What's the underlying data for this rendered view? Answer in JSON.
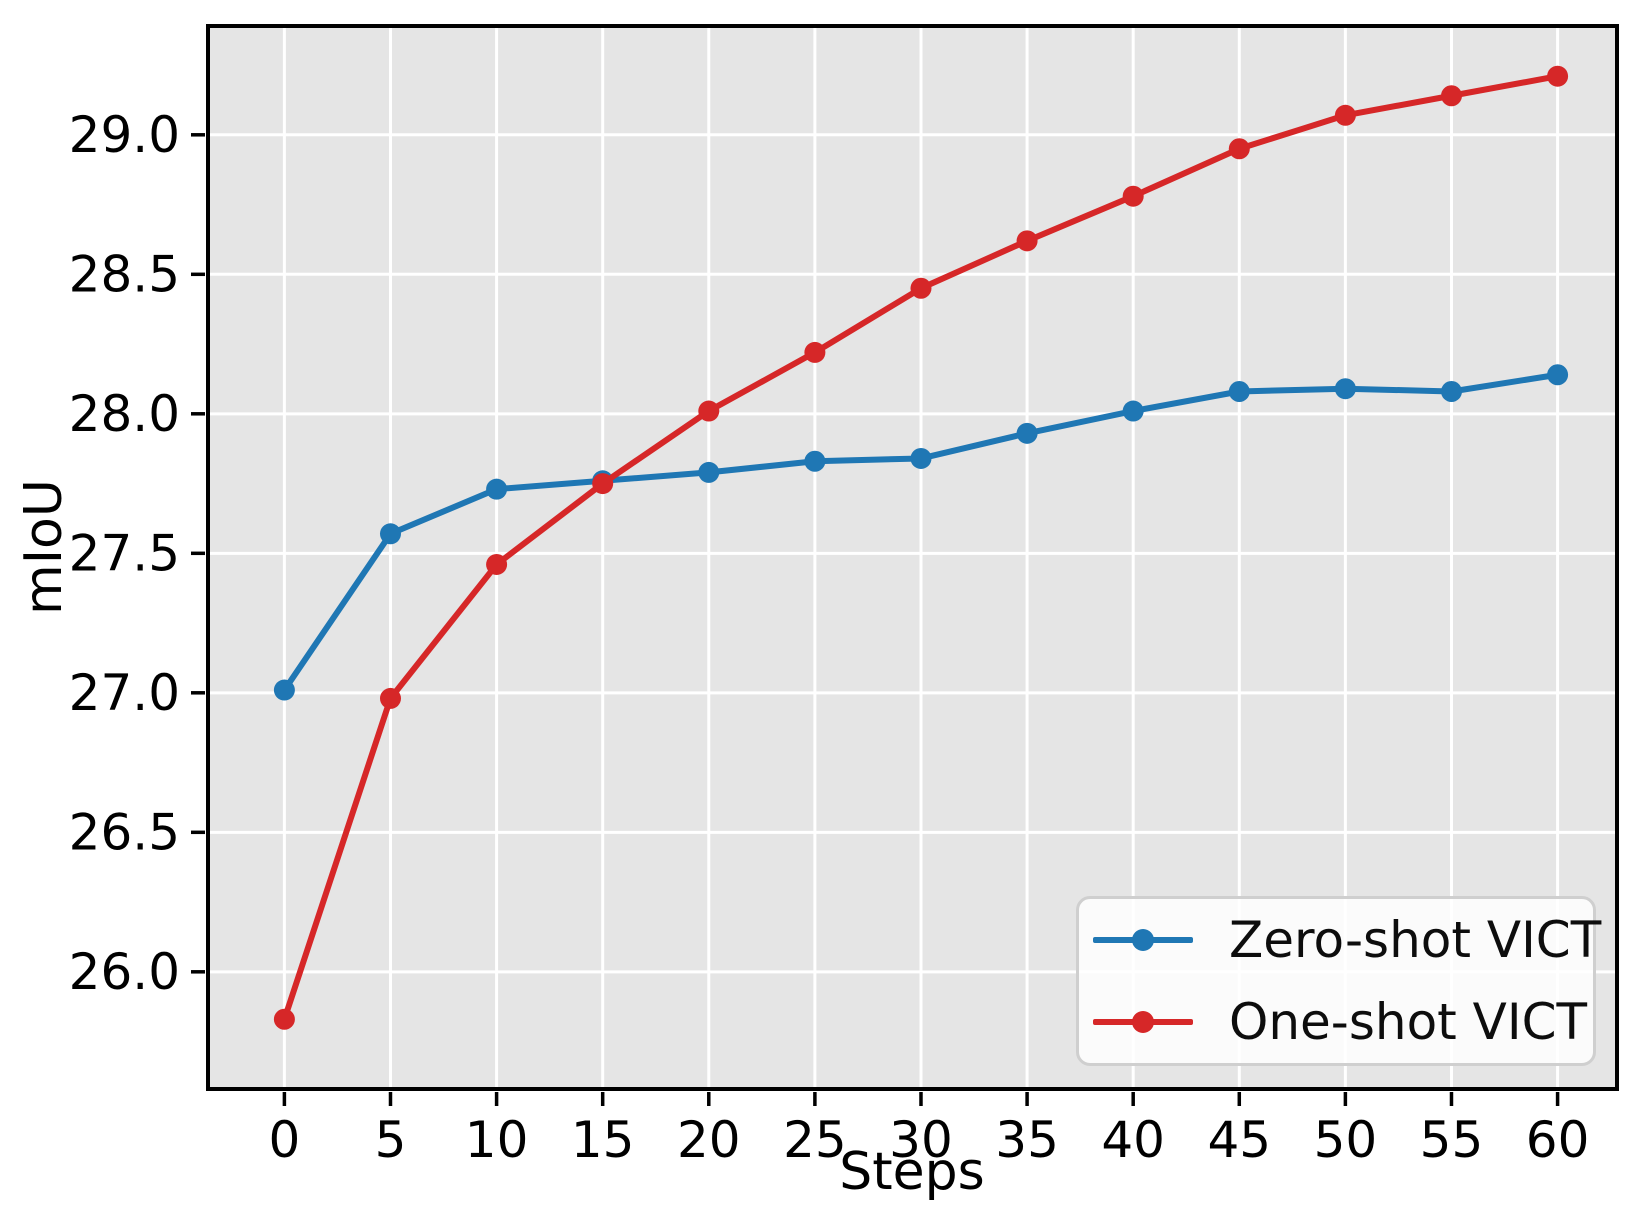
{
  "figure": {
    "background": "#ffffff",
    "text_color": "#000000"
  },
  "chart_data": {
    "type": "line",
    "title": "",
    "xlabel": "Steps",
    "ylabel": "mIoU",
    "x": [
      0,
      5,
      10,
      15,
      20,
      25,
      30,
      35,
      40,
      45,
      50,
      55,
      60
    ],
    "series": [
      {
        "name": "Zero-shot VICT",
        "color": "#1f77b4",
        "values": [
          27.01,
          27.57,
          27.73,
          27.76,
          27.79,
          27.83,
          27.84,
          27.93,
          28.01,
          28.08,
          28.09,
          28.08,
          28.14
        ]
      },
      {
        "name": "One-shot VICT",
        "color": "#d62728",
        "values": [
          25.83,
          26.98,
          27.46,
          27.75,
          28.01,
          28.22,
          28.45,
          28.62,
          28.78,
          28.95,
          29.07,
          29.14,
          29.21
        ]
      }
    ],
    "xlim": [
      -3.6,
      62.8
    ],
    "ylim": [
      25.58,
      29.39
    ],
    "x_ticks": [
      0,
      5,
      10,
      15,
      20,
      25,
      30,
      35,
      40,
      45,
      50,
      55,
      60
    ],
    "y_ticks": [
      26.0,
      26.5,
      27.0,
      27.5,
      28.0,
      28.5,
      29.0
    ],
    "grid": true,
    "plot_bg": "#e5e5e5",
    "grid_color": "#ffffff",
    "spine_color": "#000000",
    "legend_position": "lower right"
  }
}
